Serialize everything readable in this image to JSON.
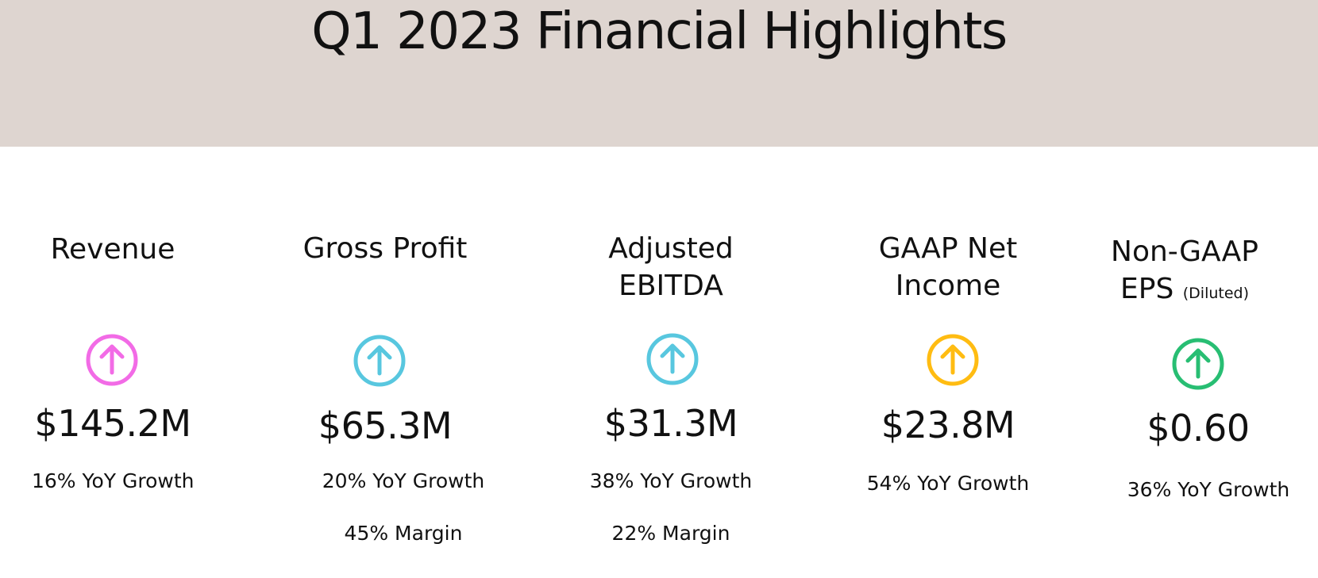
{
  "title": "Q1 2023 Financial Highlights",
  "colors": {
    "header_bg": "#ded5d0",
    "revenue_icon": "#f26be6",
    "gross_profit_icon": "#58c7df",
    "ebitda_icon": "#58c7df",
    "net_income_icon": "#ffbc12",
    "eps_icon": "#28be73"
  },
  "highlights": [
    {
      "label_line1": "Revenue",
      "value": "$145.2M",
      "growth": "16% YoY Growth",
      "icon": "arrow-up-circle-icon"
    },
    {
      "label_line1": "Gross Profit",
      "value": "$65.3M",
      "growth": "20% YoY Growth",
      "margin": "45% Margin",
      "icon": "arrow-up-circle-icon"
    },
    {
      "label_line1": "Adjusted",
      "label_line2": "EBITDA",
      "value": "$31.3M",
      "growth": "38% YoY Growth",
      "margin": "22% Margin",
      "icon": "arrow-up-circle-icon"
    },
    {
      "label_line1": "GAAP Net",
      "label_line2": "Income",
      "value": "$23.8M",
      "growth": "54% YoY Growth",
      "icon": "arrow-up-circle-icon"
    },
    {
      "label_line1": "Non-GAAP",
      "label_line2": "EPS",
      "label_note": "(Diluted)",
      "value": "$0.60",
      "growth": "36% YoY Growth",
      "icon": "arrow-up-circle-icon"
    }
  ]
}
